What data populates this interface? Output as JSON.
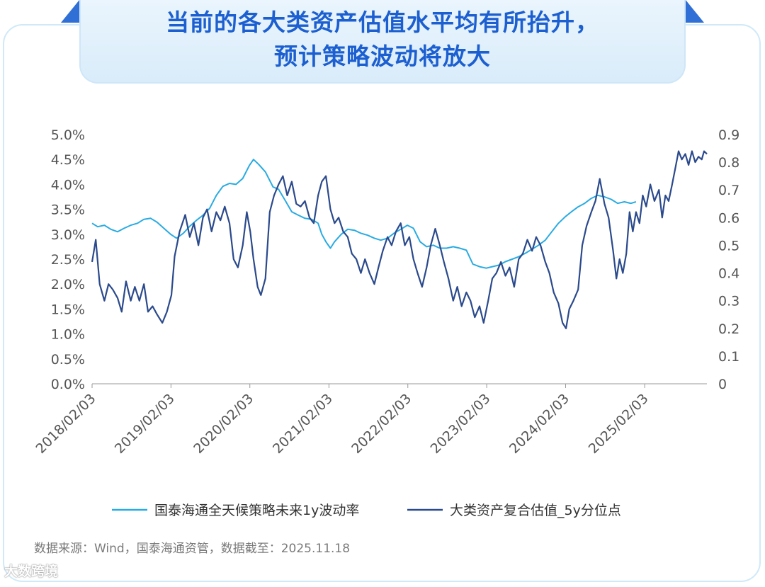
{
  "header": {
    "title_line1": "当前的各大类资产估值水平均有所抬升，",
    "title_line2": "预计策略波动将放大"
  },
  "footer": {
    "source": "数据来源：Wind，国泰海通资管，数据截至：2025.11.18",
    "watermark": "大数跨境"
  },
  "colors": {
    "series_light": "#29abe2",
    "series_dark": "#2b4a8c",
    "title": "#1c5fd0"
  },
  "chart_data": {
    "type": "line",
    "x_range": [
      "2018-02-03",
      "2025-11-18"
    ],
    "x_ticks": [
      "2018/02/03",
      "2019/02/03",
      "2020/02/03",
      "2021/02/03",
      "2022/02/03",
      "2023/02/03",
      "2024/02/03",
      "2025/02/03"
    ],
    "y_left": {
      "ylim": [
        0,
        0.05
      ],
      "ticks": [
        "0.0%",
        "0.5%",
        "1.0%",
        "1.5%",
        "2.0%",
        "2.5%",
        "3.0%",
        "3.5%",
        "4.0%",
        "4.5%",
        "5.0%"
      ]
    },
    "y_right": {
      "ylim": [
        0,
        0.9
      ],
      "ticks": [
        "0",
        "0.1",
        "0.2",
        "0.3",
        "0.4",
        "0.5",
        "0.6",
        "0.7",
        "0.8",
        "0.9"
      ]
    },
    "grid": false,
    "legend_position": "bottom",
    "series": [
      {
        "name": "国泰海通全天候策略未来1y波动率",
        "axis": "left",
        "color": "#29abe2",
        "points": [
          [
            "2018-02-03",
            0.0322
          ],
          [
            "2018-03-01",
            0.0315
          ],
          [
            "2018-04-01",
            0.0318
          ],
          [
            "2018-05-01",
            0.031
          ],
          [
            "2018-06-01",
            0.0305
          ],
          [
            "2018-07-01",
            0.0312
          ],
          [
            "2018-08-01",
            0.0318
          ],
          [
            "2018-09-01",
            0.0322
          ],
          [
            "2018-10-01",
            0.033
          ],
          [
            "2018-11-01",
            0.0332
          ],
          [
            "2018-12-01",
            0.0324
          ],
          [
            "2019-01-01",
            0.0312
          ],
          [
            "2019-02-01",
            0.03
          ],
          [
            "2019-03-01",
            0.0292
          ],
          [
            "2019-04-01",
            0.0302
          ],
          [
            "2019-05-01",
            0.0316
          ],
          [
            "2019-06-01",
            0.0328
          ],
          [
            "2019-07-01",
            0.0338
          ],
          [
            "2019-08-01",
            0.0352
          ],
          [
            "2019-09-01",
            0.0378
          ],
          [
            "2019-10-01",
            0.0396
          ],
          [
            "2019-11-01",
            0.0402
          ],
          [
            "2019-12-01",
            0.04
          ],
          [
            "2020-01-01",
            0.0412
          ],
          [
            "2020-02-01",
            0.0438
          ],
          [
            "2020-02-20",
            0.045
          ],
          [
            "2020-03-15",
            0.044
          ],
          [
            "2020-04-15",
            0.0425
          ],
          [
            "2020-05-20",
            0.0395
          ],
          [
            "2020-06-15",
            0.039
          ],
          [
            "2020-07-15",
            0.0368
          ],
          [
            "2020-08-15",
            0.0345
          ],
          [
            "2020-09-15",
            0.0338
          ],
          [
            "2020-10-15",
            0.0332
          ],
          [
            "2020-11-15",
            0.033
          ],
          [
            "2020-12-15",
            0.0322
          ],
          [
            "2021-01-01",
            0.03
          ],
          [
            "2021-01-20",
            0.0285
          ],
          [
            "2021-02-10",
            0.0272
          ],
          [
            "2021-03-01",
            0.0285
          ],
          [
            "2021-04-01",
            0.03
          ],
          [
            "2021-05-01",
            0.031
          ],
          [
            "2021-06-01",
            0.0308
          ],
          [
            "2021-07-01",
            0.0302
          ],
          [
            "2021-08-01",
            0.0298
          ],
          [
            "2021-09-01",
            0.0292
          ],
          [
            "2021-10-01",
            0.0288
          ],
          [
            "2021-11-01",
            0.0292
          ],
          [
            "2021-12-01",
            0.0302
          ],
          [
            "2022-01-01",
            0.031
          ],
          [
            "2022-02-01",
            0.0318
          ],
          [
            "2022-03-01",
            0.0312
          ],
          [
            "2022-04-01",
            0.0285
          ],
          [
            "2022-05-01",
            0.0275
          ],
          [
            "2022-06-01",
            0.0278
          ],
          [
            "2022-07-01",
            0.0272
          ],
          [
            "2022-08-01",
            0.0272
          ],
          [
            "2022-09-01",
            0.0275
          ],
          [
            "2022-10-01",
            0.0272
          ],
          [
            "2022-11-01",
            0.0268
          ],
          [
            "2022-12-01",
            0.024
          ],
          [
            "2023-01-01",
            0.0235
          ],
          [
            "2023-02-01",
            0.0232
          ],
          [
            "2023-03-01",
            0.0235
          ],
          [
            "2023-04-01",
            0.0238
          ],
          [
            "2023-05-01",
            0.0245
          ],
          [
            "2023-06-01",
            0.025
          ],
          [
            "2023-07-01",
            0.0255
          ],
          [
            "2023-08-01",
            0.0262
          ],
          [
            "2023-09-01",
            0.027
          ],
          [
            "2023-10-01",
            0.0278
          ],
          [
            "2023-11-01",
            0.0288
          ],
          [
            "2023-12-01",
            0.0305
          ],
          [
            "2024-01-01",
            0.0322
          ],
          [
            "2024-02-01",
            0.0335
          ],
          [
            "2024-03-01",
            0.0345
          ],
          [
            "2024-04-01",
            0.0355
          ],
          [
            "2024-05-01",
            0.0362
          ],
          [
            "2024-06-01",
            0.0372
          ],
          [
            "2024-07-01",
            0.0378
          ],
          [
            "2024-08-01",
            0.0375
          ],
          [
            "2024-09-01",
            0.037
          ],
          [
            "2024-10-01",
            0.0362
          ],
          [
            "2024-11-01",
            0.0365
          ],
          [
            "2024-12-01",
            0.0362
          ],
          [
            "2024-12-25",
            0.0365
          ]
        ]
      },
      {
        "name": "大类资产复合估值_5y分位点",
        "axis": "right",
        "color": "#2b4a8c",
        "points": [
          [
            "2018-02-03",
            0.44
          ],
          [
            "2018-02-20",
            0.52
          ],
          [
            "2018-03-10",
            0.36
          ],
          [
            "2018-04-01",
            0.3
          ],
          [
            "2018-04-20",
            0.36
          ],
          [
            "2018-05-10",
            0.34
          ],
          [
            "2018-06-01",
            0.31
          ],
          [
            "2018-06-20",
            0.26
          ],
          [
            "2018-07-10",
            0.37
          ],
          [
            "2018-08-01",
            0.3
          ],
          [
            "2018-08-20",
            0.35
          ],
          [
            "2018-09-10",
            0.3
          ],
          [
            "2018-10-01",
            0.36
          ],
          [
            "2018-10-20",
            0.26
          ],
          [
            "2018-11-10",
            0.28
          ],
          [
            "2018-12-01",
            0.25
          ],
          [
            "2018-12-25",
            0.22
          ],
          [
            "2019-01-15",
            0.26
          ],
          [
            "2019-02-05",
            0.32
          ],
          [
            "2019-02-20",
            0.46
          ],
          [
            "2019-03-15",
            0.55
          ],
          [
            "2019-04-10",
            0.61
          ],
          [
            "2019-05-01",
            0.53
          ],
          [
            "2019-05-20",
            0.58
          ],
          [
            "2019-06-10",
            0.5
          ],
          [
            "2019-07-01",
            0.6
          ],
          [
            "2019-07-20",
            0.63
          ],
          [
            "2019-08-10",
            0.55
          ],
          [
            "2019-09-01",
            0.62
          ],
          [
            "2019-09-20",
            0.59
          ],
          [
            "2019-10-10",
            0.64
          ],
          [
            "2019-11-01",
            0.58
          ],
          [
            "2019-11-20",
            0.45
          ],
          [
            "2019-12-10",
            0.42
          ],
          [
            "2020-01-01",
            0.5
          ],
          [
            "2020-01-20",
            0.62
          ],
          [
            "2020-02-05",
            0.55
          ],
          [
            "2020-02-20",
            0.45
          ],
          [
            "2020-03-10",
            0.35
          ],
          [
            "2020-03-25",
            0.32
          ],
          [
            "2020-04-15",
            0.38
          ],
          [
            "2020-05-05",
            0.62
          ],
          [
            "2020-05-25",
            0.68
          ],
          [
            "2020-06-15",
            0.72
          ],
          [
            "2020-07-05",
            0.75
          ],
          [
            "2020-07-25",
            0.68
          ],
          [
            "2020-08-15",
            0.73
          ],
          [
            "2020-09-05",
            0.65
          ],
          [
            "2020-09-25",
            0.64
          ],
          [
            "2020-10-15",
            0.66
          ],
          [
            "2020-11-05",
            0.6
          ],
          [
            "2020-11-25",
            0.58
          ],
          [
            "2020-12-15",
            0.68
          ],
          [
            "2021-01-01",
            0.73
          ],
          [
            "2021-01-20",
            0.75
          ],
          [
            "2021-02-10",
            0.63
          ],
          [
            "2021-03-01",
            0.58
          ],
          [
            "2021-03-20",
            0.6
          ],
          [
            "2021-04-10",
            0.55
          ],
          [
            "2021-05-01",
            0.53
          ],
          [
            "2021-05-20",
            0.47
          ],
          [
            "2021-06-10",
            0.45
          ],
          [
            "2021-07-01",
            0.4
          ],
          [
            "2021-07-20",
            0.45
          ],
          [
            "2021-08-10",
            0.4
          ],
          [
            "2021-09-01",
            0.36
          ],
          [
            "2021-09-20",
            0.42
          ],
          [
            "2021-10-10",
            0.48
          ],
          [
            "2021-11-01",
            0.53
          ],
          [
            "2021-11-20",
            0.5
          ],
          [
            "2021-12-10",
            0.55
          ],
          [
            "2022-01-01",
            0.58
          ],
          [
            "2022-01-20",
            0.5
          ],
          [
            "2022-02-10",
            0.53
          ],
          [
            "2022-03-01",
            0.45
          ],
          [
            "2022-03-20",
            0.4
          ],
          [
            "2022-04-10",
            0.35
          ],
          [
            "2022-05-01",
            0.42
          ],
          [
            "2022-05-20",
            0.5
          ],
          [
            "2022-06-10",
            0.56
          ],
          [
            "2022-07-01",
            0.5
          ],
          [
            "2022-07-20",
            0.44
          ],
          [
            "2022-08-10",
            0.38
          ],
          [
            "2022-09-01",
            0.3
          ],
          [
            "2022-09-20",
            0.35
          ],
          [
            "2022-10-10",
            0.28
          ],
          [
            "2022-11-01",
            0.33
          ],
          [
            "2022-11-20",
            0.3
          ],
          [
            "2022-12-10",
            0.24
          ],
          [
            "2023-01-01",
            0.28
          ],
          [
            "2023-01-20",
            0.22
          ],
          [
            "2023-02-10",
            0.3
          ],
          [
            "2023-03-01",
            0.38
          ],
          [
            "2023-03-20",
            0.4
          ],
          [
            "2023-04-10",
            0.44
          ],
          [
            "2023-05-01",
            0.39
          ],
          [
            "2023-05-20",
            0.42
          ],
          [
            "2023-06-10",
            0.35
          ],
          [
            "2023-07-01",
            0.45
          ],
          [
            "2023-07-20",
            0.47
          ],
          [
            "2023-08-10",
            0.52
          ],
          [
            "2023-09-01",
            0.48
          ],
          [
            "2023-09-20",
            0.53
          ],
          [
            "2023-10-10",
            0.5
          ],
          [
            "2023-11-01",
            0.44
          ],
          [
            "2023-11-20",
            0.4
          ],
          [
            "2023-12-10",
            0.33
          ],
          [
            "2024-01-01",
            0.29
          ],
          [
            "2024-01-20",
            0.22
          ],
          [
            "2024-02-05",
            0.2
          ],
          [
            "2024-02-20",
            0.27
          ],
          [
            "2024-03-10",
            0.3
          ],
          [
            "2024-04-01",
            0.34
          ],
          [
            "2024-04-20",
            0.5
          ],
          [
            "2024-05-10",
            0.57
          ],
          [
            "2024-06-01",
            0.62
          ],
          [
            "2024-06-20",
            0.66
          ],
          [
            "2024-07-10",
            0.74
          ],
          [
            "2024-08-01",
            0.65
          ],
          [
            "2024-08-20",
            0.6
          ],
          [
            "2024-09-10",
            0.48
          ],
          [
            "2024-09-25",
            0.38
          ],
          [
            "2024-10-10",
            0.45
          ],
          [
            "2024-10-25",
            0.4
          ],
          [
            "2024-11-10",
            0.47
          ],
          [
            "2024-11-25",
            0.62
          ],
          [
            "2024-12-10",
            0.55
          ],
          [
            "2024-12-25",
            0.62
          ],
          [
            "2025-01-10",
            0.58
          ],
          [
            "2025-01-25",
            0.68
          ],
          [
            "2025-02-10",
            0.64
          ],
          [
            "2025-03-01",
            0.72
          ],
          [
            "2025-03-20",
            0.66
          ],
          [
            "2025-04-10",
            0.7
          ],
          [
            "2025-04-25",
            0.6
          ],
          [
            "2025-05-10",
            0.68
          ],
          [
            "2025-05-25",
            0.66
          ],
          [
            "2025-06-10",
            0.72
          ],
          [
            "2025-06-25",
            0.78
          ],
          [
            "2025-07-10",
            0.84
          ],
          [
            "2025-07-25",
            0.81
          ],
          [
            "2025-08-10",
            0.83
          ],
          [
            "2025-08-25",
            0.79
          ],
          [
            "2025-09-10",
            0.84
          ],
          [
            "2025-09-25",
            0.8
          ],
          [
            "2025-10-10",
            0.82
          ],
          [
            "2025-10-25",
            0.81
          ],
          [
            "2025-11-05",
            0.84
          ],
          [
            "2025-11-18",
            0.83
          ]
        ]
      }
    ]
  }
}
